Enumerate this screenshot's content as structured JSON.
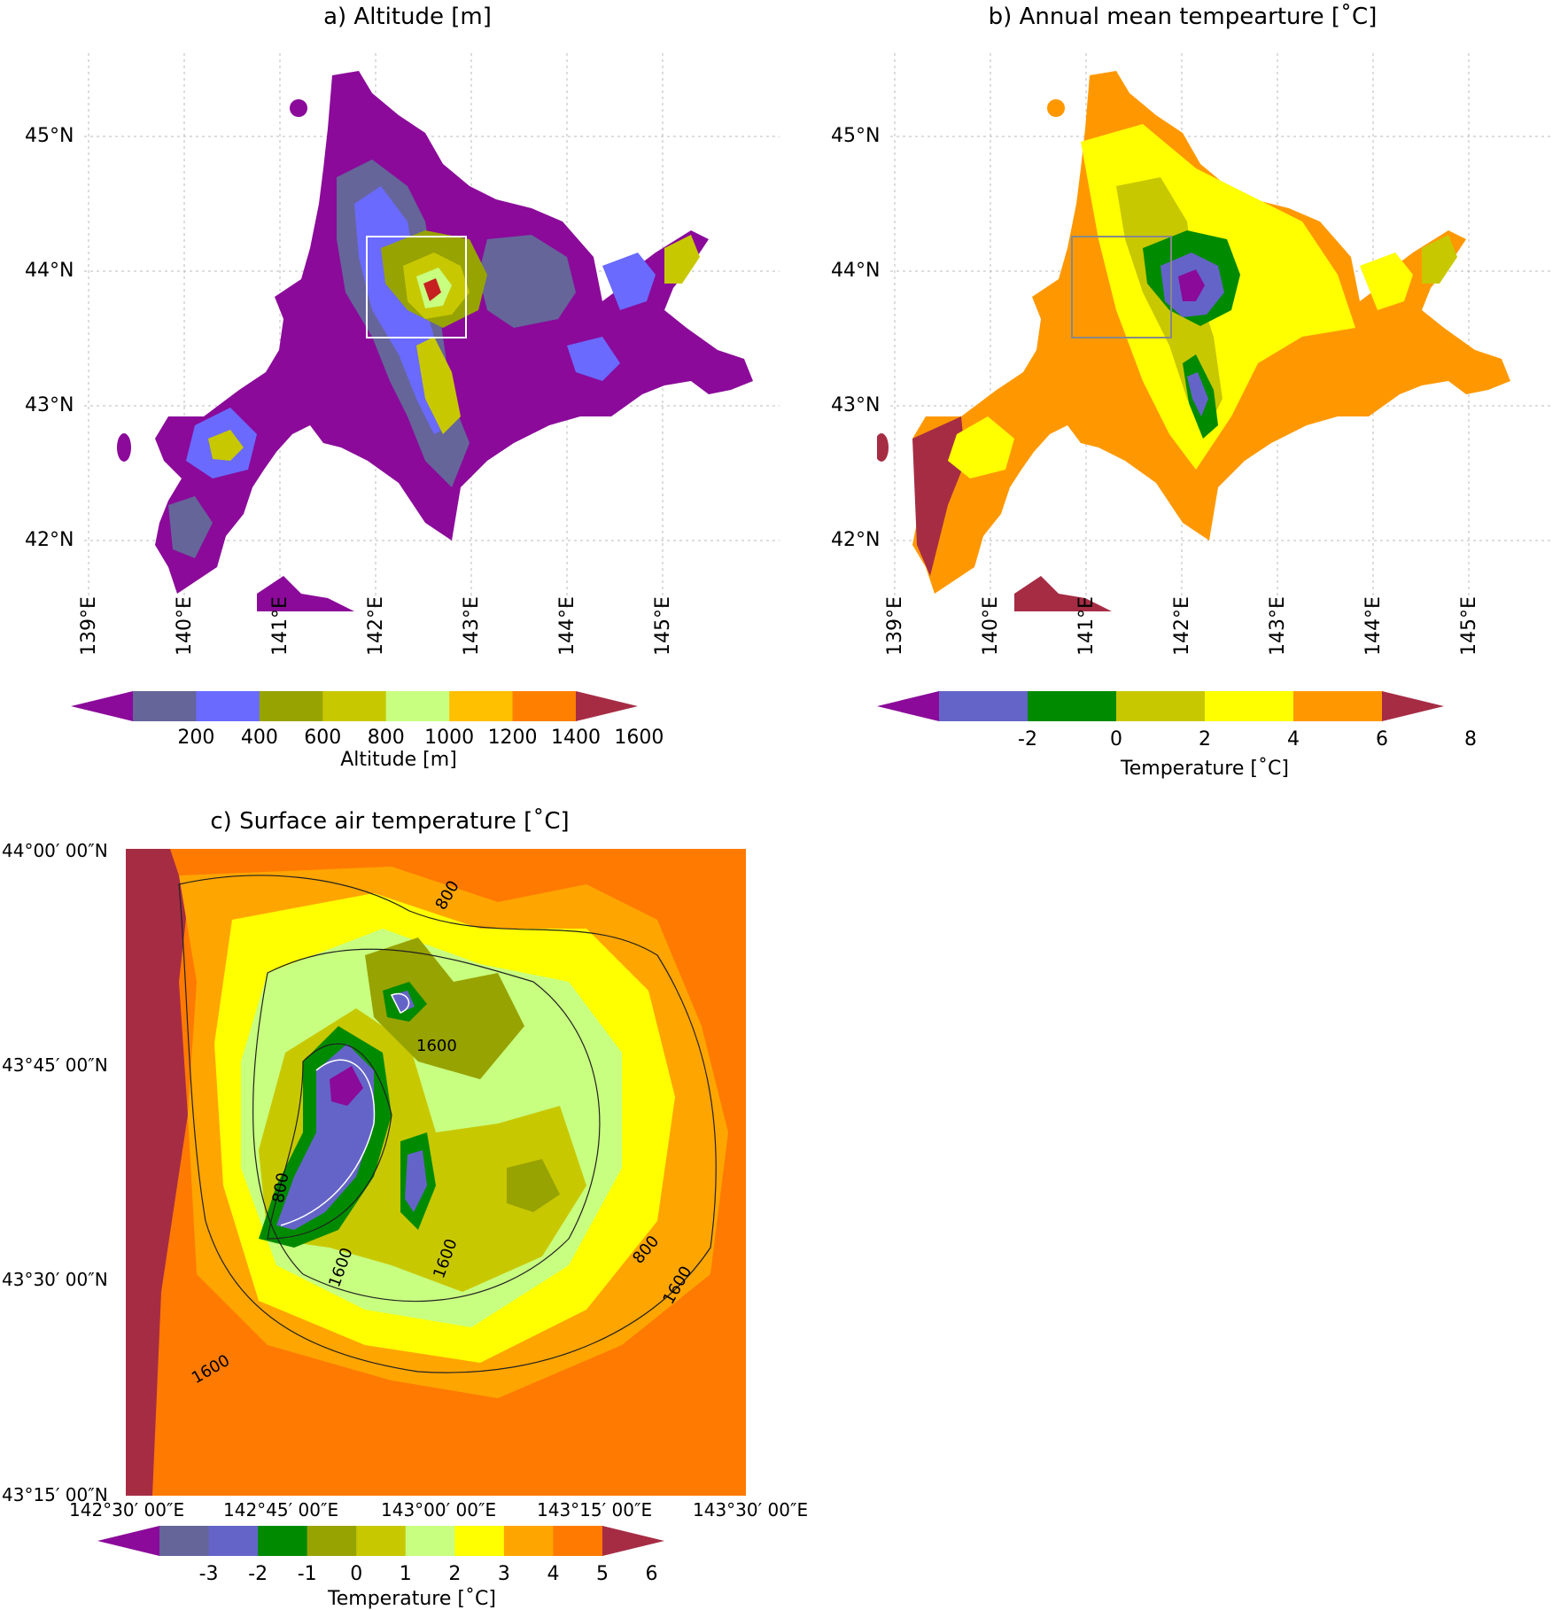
{
  "panels": {
    "a": {
      "title": "a) Altitude [m]",
      "lat_labels": [
        "45°N",
        "44°N",
        "43°N",
        "42°N"
      ],
      "lon_labels": [
        "139°E",
        "140°E",
        "141°E",
        "142°E",
        "143°E",
        "144°E",
        "145°E"
      ],
      "colorbar": {
        "title": "Altitude [m]",
        "ticks": [
          "200",
          "400",
          "600",
          "800",
          "1000",
          "1200",
          "1400",
          "1600"
        ],
        "colors": [
          "#8b0a9a",
          "#65659a",
          "#6a6aff",
          "#97a300",
          "#c8c800",
          "#c8ff80",
          "#ffc000",
          "#ff8000",
          "#a62c44"
        ]
      }
    },
    "b": {
      "title": "b) Annual mean tempearture [˚C]",
      "lat_labels": [
        "45°N",
        "44°N",
        "43°N",
        "42°N"
      ],
      "lon_labels": [
        "139°E",
        "140°E",
        "141°E",
        "142°E",
        "143°E",
        "144°E",
        "145°E"
      ],
      "colorbar": {
        "title": "Temperature [˚C]",
        "ticks": [
          "-2",
          "0",
          "2",
          "4",
          "6",
          "8"
        ],
        "colors": [
          "#8b0a9a",
          "#6464c8",
          "#008a00",
          "#c8c800",
          "#ffff00",
          "#ff9800",
          "#a62c44"
        ]
      }
    },
    "c": {
      "title": "c) Surface air temperature [˚C]",
      "lat_labels": [
        "44°00′ 00″N",
        "43°45′ 00″N",
        "43°30′ 00″N",
        "43°15′ 00″N"
      ],
      "lon_labels": [
        "142°30′ 00″E",
        "142°45′ 00″E",
        "143°00′ 00″E",
        "143°15′ 00″E",
        "143°30′ 00″E"
      ],
      "contour_labels": [
        "800",
        "1600",
        "1600",
        "1600",
        "800",
        "800",
        "1600",
        "1600"
      ],
      "colorbar": {
        "title": "Temperature [˚C]",
        "ticks": [
          "-3",
          "-2",
          "-1",
          "0",
          "1",
          "2",
          "3",
          "4",
          "5",
          "6"
        ],
        "colors": [
          "#8b0a9a",
          "#65659a",
          "#6464c8",
          "#008a00",
          "#97a300",
          "#c8c800",
          "#c8ff80",
          "#ffff00",
          "#ffa500",
          "#ff7a00",
          "#a62c44"
        ]
      }
    }
  }
}
